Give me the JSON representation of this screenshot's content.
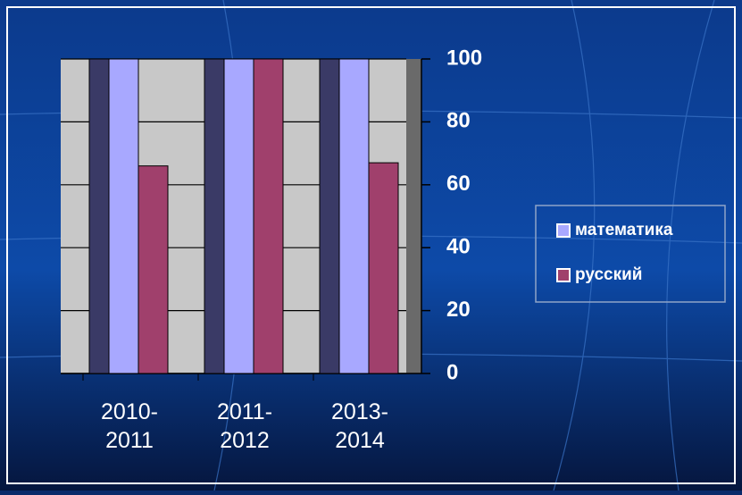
{
  "chart_data": {
    "type": "bar",
    "categories": [
      "2010-2011",
      "2011-2012",
      "2013-2014"
    ],
    "series": [
      {
        "name": "математика",
        "color": "#a8a8ff",
        "values": [
          100,
          100,
          100
        ]
      },
      {
        "name": "русский",
        "color": "#a0406c",
        "values": [
          66,
          100,
          67
        ]
      }
    ],
    "ylim": [
      0,
      100
    ],
    "yticks": [
      0,
      20,
      40,
      60,
      80,
      100
    ],
    "grid": true,
    "legend": "right"
  }
}
